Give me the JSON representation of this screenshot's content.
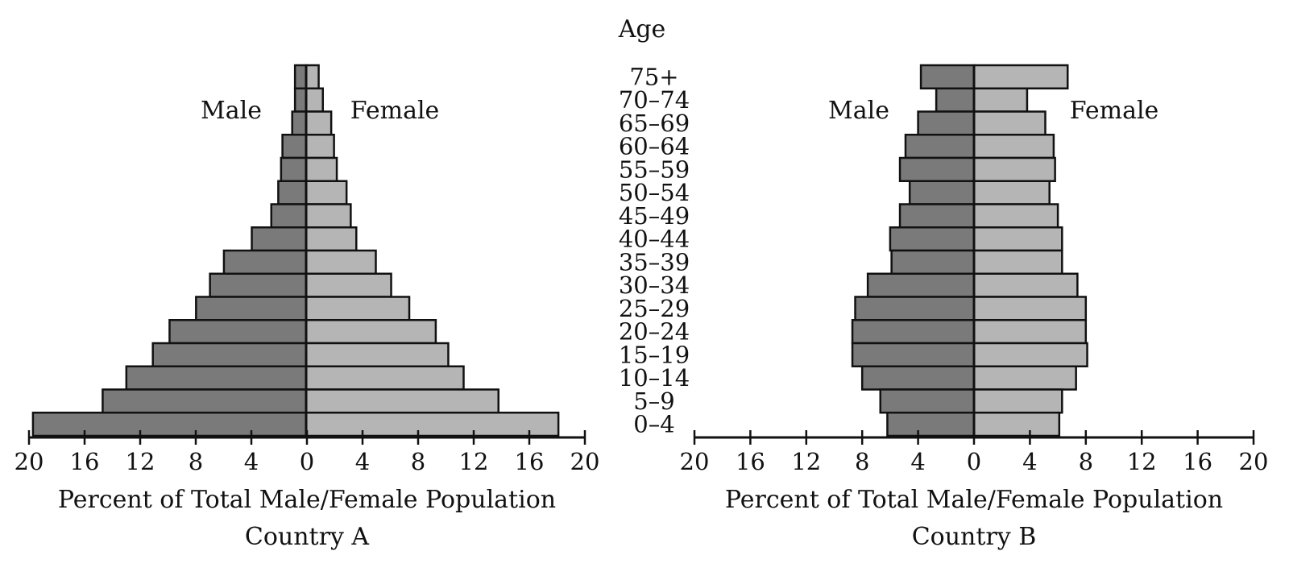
{
  "age_axis_title": "Age",
  "age_groups": [
    "75+",
    "70–74",
    "65–69",
    "60–64",
    "55–59",
    "50–54",
    "45–49",
    "40–44",
    "35–39",
    "30–34",
    "25–29",
    "20–24",
    "15–19",
    "10–14",
    "5–9",
    "0–4"
  ],
  "colors": {
    "male": "#7a7a7a",
    "female": "#b5b5b5",
    "stroke": "#111111"
  },
  "chart_data": [
    {
      "type": "bar",
      "orientation": "horizontal-population-pyramid",
      "title": "Country A",
      "xlabel": "Percent of Total Male/Female Population",
      "ylabel": "Age",
      "xlim": [
        -20,
        20
      ],
      "xticks": [
        20,
        16,
        12,
        8,
        4,
        0,
        4,
        8,
        12,
        16,
        20
      ],
      "categories": [
        "75+",
        "70–74",
        "65–69",
        "60–64",
        "55–59",
        "50–54",
        "45–49",
        "40–44",
        "35–39",
        "30–34",
        "25–29",
        "20–24",
        "15–19",
        "10–14",
        "5–9",
        "0–4"
      ],
      "series": [
        {
          "name": "Male",
          "values": [
            0.8,
            0.8,
            1.0,
            1.7,
            1.8,
            2.0,
            2.5,
            3.9,
            5.9,
            6.9,
            7.9,
            9.8,
            11.0,
            12.9,
            14.6,
            19.6
          ]
        },
        {
          "name": "Female",
          "values": [
            0.9,
            1.2,
            1.8,
            2.0,
            2.2,
            2.9,
            3.2,
            3.6,
            5.0,
            6.1,
            7.4,
            9.3,
            10.2,
            11.3,
            13.8,
            18.1
          ]
        }
      ]
    },
    {
      "type": "bar",
      "orientation": "horizontal-population-pyramid",
      "title": "Country B",
      "xlabel": "Percent of Total Male/Female Population",
      "ylabel": "Age",
      "xlim": [
        -20,
        20
      ],
      "xticks": [
        20,
        16,
        12,
        8,
        4,
        0,
        4,
        8,
        12,
        16,
        20
      ],
      "categories": [
        "75+",
        "70–74",
        "65–69",
        "60–64",
        "55–59",
        "50–54",
        "45–49",
        "40–44",
        "35–39",
        "30–34",
        "25–29",
        "20–24",
        "15–19",
        "10–14",
        "5–9",
        "0–4"
      ],
      "series": [
        {
          "name": "Male",
          "values": [
            3.8,
            2.7,
            4.0,
            4.9,
            5.3,
            4.6,
            5.3,
            6.0,
            5.9,
            7.6,
            8.5,
            8.7,
            8.7,
            8.0,
            6.7,
            6.2
          ]
        },
        {
          "name": "Female",
          "values": [
            6.7,
            3.8,
            5.1,
            5.7,
            5.8,
            5.4,
            6.0,
            6.3,
            6.3,
            7.4,
            8.0,
            8.0,
            8.1,
            7.3,
            6.3,
            6.1
          ]
        }
      ]
    }
  ]
}
